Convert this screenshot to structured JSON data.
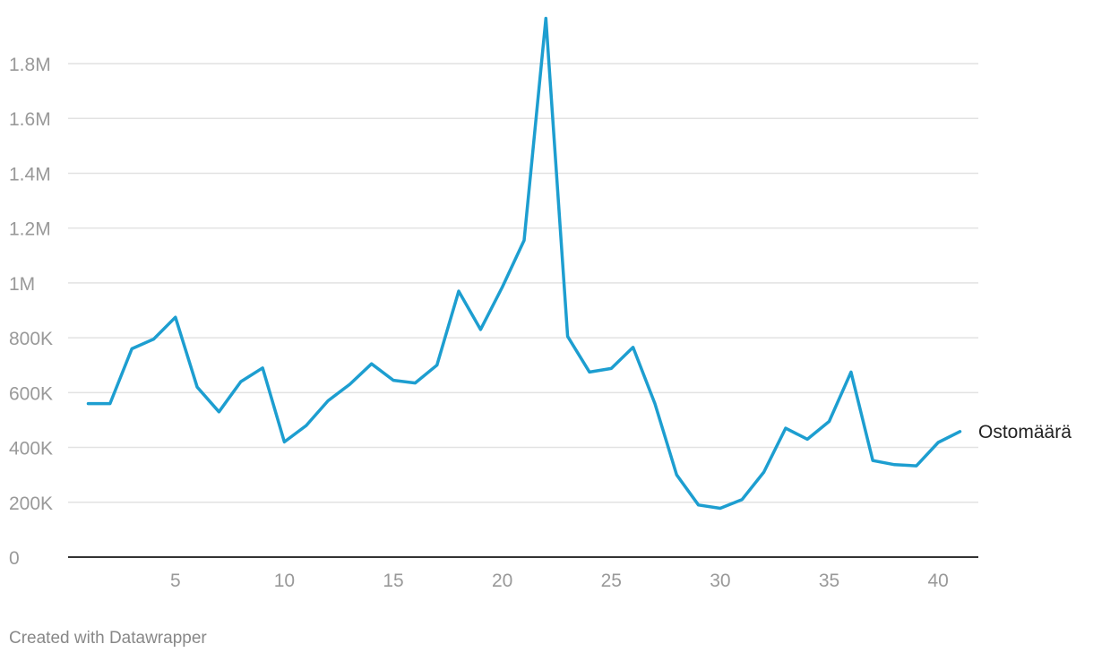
{
  "credit": "Created with Datawrapper",
  "colors": {
    "line": "#1d9ed0",
    "grid": "#e2e2e2",
    "axis": "#333333",
    "tick": "#999999"
  },
  "chart_data": {
    "type": "line",
    "xlim": [
      1,
      41
    ],
    "ylim": [
      0,
      1900000
    ],
    "x_ticks": [
      5,
      10,
      15,
      20,
      25,
      30,
      35,
      40
    ],
    "y_ticks": [
      {
        "value": 0,
        "label": "0"
      },
      {
        "value": 200000,
        "label": "200K"
      },
      {
        "value": 400000,
        "label": "400K"
      },
      {
        "value": 600000,
        "label": "600K"
      },
      {
        "value": 800000,
        "label": "800K"
      },
      {
        "value": 1000000,
        "label": "1M"
      },
      {
        "value": 1200000,
        "label": "1.2M"
      },
      {
        "value": 1400000,
        "label": "1.4M"
      },
      {
        "value": 1600000,
        "label": "1.6M"
      },
      {
        "value": 1800000,
        "label": "1.8M"
      }
    ],
    "grid": true,
    "series": [
      {
        "name": "Ostomäärä",
        "x": [
          1,
          2,
          3,
          4,
          5,
          6,
          7,
          8,
          9,
          10,
          11,
          12,
          13,
          14,
          15,
          16,
          17,
          18,
          19,
          20,
          21,
          22,
          23,
          24,
          25,
          26,
          27,
          28,
          29,
          30,
          31,
          32,
          33,
          34,
          35,
          36,
          37,
          38,
          39,
          40,
          41
        ],
        "values": [
          560000,
          560000,
          760000,
          795000,
          875000,
          620000,
          530000,
          640000,
          690000,
          420000,
          480000,
          570000,
          630000,
          705000,
          645000,
          635000,
          700000,
          970000,
          830000,
          985000,
          1155000,
          1965000,
          805000,
          675000,
          688000,
          765000,
          560000,
          300000,
          190000,
          178000,
          210000,
          310000,
          470000,
          430000,
          495000,
          675000,
          352000,
          337000,
          333000,
          418000,
          458000
        ]
      }
    ]
  }
}
